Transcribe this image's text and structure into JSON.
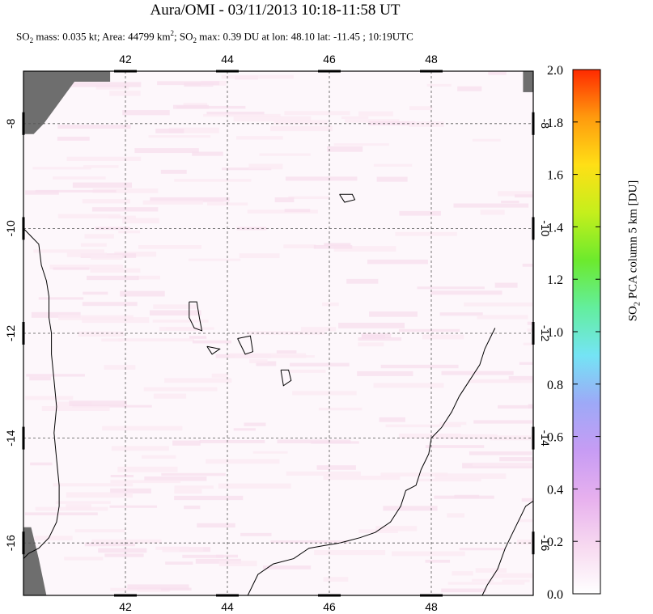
{
  "title": "Aura/OMI - 03/11/2013 10:18-11:58 UT",
  "subtitle": {
    "so2_mass_label": "SO",
    "so2_mass_sub": "2",
    "so2_mass_text": " mass: 0.035 kt; Area: 44799 km",
    "area_sup": "2",
    "so2_max_pre": "; SO",
    "so2_max_sub": "2",
    "so2_max_text": " max: 0.39 DU at lon: 48.10 lat: -11.45 ; 10:19UTC"
  },
  "colorbar": {
    "label_pre": "SO",
    "label_sub": "2",
    "label_post": " PCA column 5 km [DU]",
    "ticks": [
      "0.0",
      "0.2",
      "0.4",
      "0.6",
      "0.8",
      "1.0",
      "1.2",
      "1.4",
      "1.6",
      "1.8",
      "2.0"
    ],
    "colors": [
      "#ffffff",
      "#f7d9f0",
      "#e7b0ee",
      "#c79cf4",
      "#9da9f7",
      "#74e4f5",
      "#63ee9e",
      "#6cea2d",
      "#c5ef1c",
      "#ffdf16",
      "#ff9a0e",
      "#ff2a00"
    ]
  },
  "chart_data": {
    "type": "heatmap",
    "title": "Aura/OMI - 03/11/2013 10:18-11:58 UT",
    "xlabel": "",
    "ylabel": "",
    "xlim": [
      40.0,
      50.0
    ],
    "ylim": [
      -17.0,
      -7.0
    ],
    "x_ticks": [
      "42",
      "44",
      "46",
      "48"
    ],
    "x_tick_values": [
      42,
      44,
      46,
      48
    ],
    "y_ticks": [
      "-8",
      "-10",
      "-12",
      "-14",
      "-16"
    ],
    "y_tick_values": [
      -8,
      -10,
      -12,
      -14,
      -16
    ],
    "grid": true,
    "colorbar_range": [
      0.0,
      2.0
    ],
    "so2_max": {
      "value": 0.39,
      "lon": 48.1,
      "lat": -11.45
    },
    "coastlines": {
      "africa": [
        [
          40.0,
          -10.0
        ],
        [
          40.15,
          -10.15
        ],
        [
          40.3,
          -10.3
        ],
        [
          40.35,
          -10.7
        ],
        [
          40.45,
          -11.0
        ],
        [
          40.5,
          -11.3
        ],
        [
          40.5,
          -11.7
        ],
        [
          40.55,
          -12.0
        ],
        [
          40.55,
          -12.4
        ],
        [
          40.6,
          -12.9
        ],
        [
          40.65,
          -13.4
        ],
        [
          40.6,
          -13.9
        ],
        [
          40.65,
          -14.4
        ],
        [
          40.7,
          -14.9
        ],
        [
          40.7,
          -15.3
        ],
        [
          40.65,
          -15.6
        ],
        [
          40.5,
          -15.9
        ],
        [
          40.3,
          -16.1
        ],
        [
          40.1,
          -16.2
        ],
        [
          40.0,
          -16.3
        ]
      ],
      "madagascar": [
        [
          49.0,
          -17.0
        ],
        [
          49.1,
          -16.8
        ],
        [
          49.3,
          -16.5
        ],
        [
          49.45,
          -16.1
        ],
        [
          49.6,
          -15.8
        ],
        [
          49.75,
          -15.5
        ],
        [
          49.85,
          -15.3
        ],
        [
          50.0,
          -15.2
        ]
      ],
      "madagascar_nw": [
        [
          49.25,
          -11.9
        ],
        [
          49.15,
          -12.1
        ],
        [
          49.05,
          -12.3
        ],
        [
          48.95,
          -12.6
        ],
        [
          48.75,
          -12.9
        ],
        [
          48.55,
          -13.2
        ],
        [
          48.4,
          -13.5
        ],
        [
          48.2,
          -13.8
        ],
        [
          48.0,
          -14.0
        ],
        [
          47.95,
          -14.3
        ],
        [
          47.8,
          -14.6
        ],
        [
          47.7,
          -14.9
        ],
        [
          47.5,
          -15.0
        ],
        [
          47.4,
          -15.3
        ],
        [
          47.2,
          -15.6
        ],
        [
          46.9,
          -15.8
        ],
        [
          46.6,
          -15.9
        ],
        [
          46.4,
          -15.95
        ],
        [
          46.2,
          -16.0
        ],
        [
          45.9,
          -16.05
        ],
        [
          45.6,
          -16.1
        ],
        [
          45.3,
          -16.3
        ],
        [
          44.9,
          -16.4
        ],
        [
          44.6,
          -16.6
        ],
        [
          44.4,
          -17.0
        ]
      ],
      "grande_comore": [
        [
          43.25,
          -11.4
        ],
        [
          43.4,
          -11.4
        ],
        [
          43.45,
          -11.7
        ],
        [
          43.5,
          -11.95
        ],
        [
          43.35,
          -11.9
        ],
        [
          43.25,
          -11.7
        ],
        [
          43.25,
          -11.4
        ]
      ],
      "moheli": [
        [
          43.6,
          -12.25
        ],
        [
          43.85,
          -12.3
        ],
        [
          43.7,
          -12.4
        ],
        [
          43.6,
          -12.25
        ]
      ],
      "anjouan": [
        [
          44.2,
          -12.1
        ],
        [
          44.45,
          -12.05
        ],
        [
          44.5,
          -12.35
        ],
        [
          44.35,
          -12.4
        ],
        [
          44.2,
          -12.1
        ]
      ],
      "mayotte": [
        [
          45.05,
          -12.7
        ],
        [
          45.2,
          -12.7
        ],
        [
          45.25,
          -12.9
        ],
        [
          45.1,
          -13.0
        ],
        [
          45.05,
          -12.7
        ]
      ],
      "aldabra": [
        [
          46.2,
          -9.35
        ],
        [
          46.45,
          -9.35
        ],
        [
          46.5,
          -9.45
        ],
        [
          46.3,
          -9.5
        ],
        [
          46.2,
          -9.35
        ]
      ]
    }
  }
}
